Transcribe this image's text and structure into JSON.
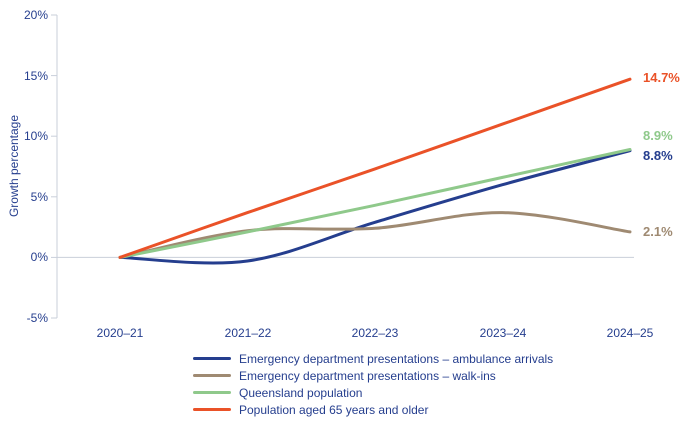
{
  "chart_data": {
    "type": "line",
    "title": "",
    "xlabel": "",
    "ylabel": "Growth percentage",
    "categories": [
      "2020–21",
      "2021–22",
      "2022–23",
      "2023–24",
      "2024–25"
    ],
    "ytick_labels": [
      "20%",
      "15%",
      "10%",
      "5%",
      "0%",
      "-5%"
    ],
    "yticks": [
      20,
      15,
      10,
      5,
      0,
      -5
    ],
    "ylim": [
      -5,
      20
    ],
    "grid": false,
    "legend_position": "bottom",
    "axis_color": "#c9cfda",
    "series": [
      {
        "name": "Emergency department presentations – ambulance arrivals",
        "color": "#253e8e",
        "values": [
          0,
          -0.3,
          2.9,
          6.0,
          8.8
        ],
        "end_label": "8.8%"
      },
      {
        "name": "Emergency department presentations – walk-ins",
        "color": "#9f8a72",
        "values": [
          0,
          2.2,
          2.4,
          3.7,
          2.1
        ],
        "end_label": "2.1%"
      },
      {
        "name": "Queensland population",
        "color": "#8fc98b",
        "values": [
          0,
          2.1,
          4.3,
          6.6,
          8.9
        ],
        "end_label": "8.9%"
      },
      {
        "name": "Population aged 65 years and older",
        "color": "#ea5228",
        "values": [
          0,
          3.7,
          7.3,
          11.0,
          14.7
        ],
        "end_label": "14.7%"
      }
    ],
    "end_labels": [
      {
        "text": "14.7%",
        "color": "#ea5228"
      },
      {
        "text": "8.9%",
        "color": "#8fc98b"
      },
      {
        "text": "8.8%",
        "color": "#253e8e"
      },
      {
        "text": "2.1%",
        "color": "#9f8a72"
      }
    ]
  }
}
